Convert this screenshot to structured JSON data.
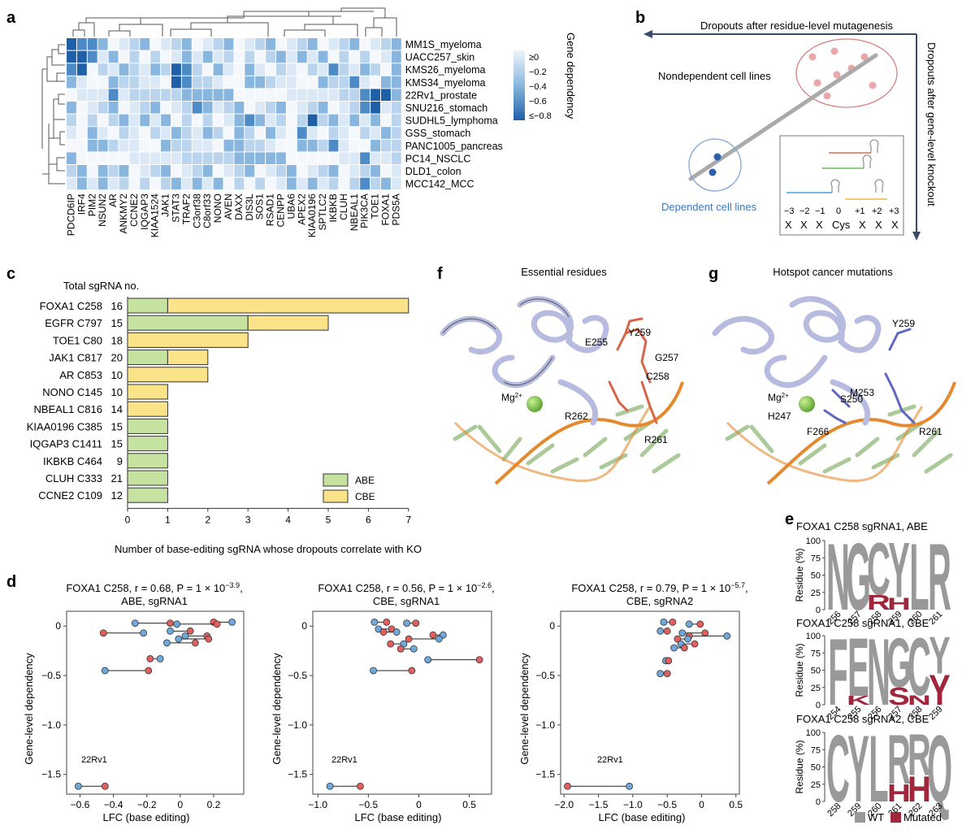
{
  "panels": {
    "a": "a",
    "b": "b",
    "c": "c",
    "d": "d",
    "e": "e",
    "f": "f",
    "g": "g"
  },
  "colors": {
    "dep_dark": "#1f5fa8",
    "dep_light": "#e8f1fa",
    "abe": "#c5e2a0",
    "cbe": "#fbe389",
    "dot_blue": "#6fa8dc",
    "dot_red": "#e06060",
    "wt": "#999999",
    "mutated": "#a0263c",
    "helix": "#c9cbe6",
    "dna": "#e5892f"
  },
  "heatmap": {
    "rows": [
      "MM1S_myeloma",
      "UACC257_skin",
      "KMS26_myeloma",
      "KMS34_myeloma",
      "22Rv1_prostate",
      "SNU216_stomach",
      "SUDHL5_lymphoma",
      "GSS_stomach",
      "PANC1005_pancreas",
      "PC14_NSCLC",
      "DLD1_colon",
      "MCC142_MCC"
    ],
    "cols": [
      "PDCD6IP",
      "IRF4",
      "PIM2",
      "NSUN2",
      "AR",
      "ANKMY2",
      "CCNE2",
      "IQGAP3",
      "KIAA1524",
      "JAK1",
      "STAT3",
      "TRAF2",
      "C3orf38",
      "C8orf33",
      "NONO",
      "AVEN",
      "DAXX",
      "DIS3L",
      "SOS1",
      "RSAD1",
      "CENPP",
      "UBA6",
      "APEX2",
      "KIAA0196",
      "SPTLC2",
      "IKBKB",
      "CLUH",
      "NBEAL1",
      "PIK3CA",
      "TOE1",
      "FOXA1",
      "PDS5A"
    ],
    "legend_title": "Gene dependency",
    "legend_ticks": [
      "≥0",
      "−0.2",
      "−0.4",
      "−0.6",
      "≤−0.8"
    ]
  },
  "schematic": {
    "top_label": "Dropouts after residue-level mutagenesis",
    "right_label": "Dropouts after gene-level knockout",
    "nondependent": "Nondependent cell lines",
    "dependent": "Dependent cell lines",
    "positions": [
      "−3",
      "−2",
      "−1",
      "0",
      "+1",
      "+2",
      "+3"
    ],
    "residues": [
      "X",
      "X",
      "X",
      "Cys",
      "X",
      "X",
      "X"
    ]
  },
  "chart_data": [
    {
      "type": "bar",
      "panel": "c",
      "title": "Total sgRNA no.",
      "xlabel": "Number of base-editing sgRNA whose dropouts correlate with KO",
      "xlim": [
        0,
        7
      ],
      "xticks": [
        "0",
        "1",
        "2",
        "3",
        "4",
        "5",
        "6",
        "7"
      ],
      "categories": [
        "FOXA1 C258",
        "EGFR C797",
        "TOE1 C80",
        "JAK1 C817",
        "AR C853",
        "NONO C145",
        "NBEAL1 C816",
        "KIAA0196 C385",
        "IQGAP3 C1411",
        "IKBKB C464",
        "CLUH C333",
        "CCNE2 C109"
      ],
      "totals": [
        "16",
        "15",
        "18",
        "20",
        "10",
        "10",
        "14",
        "15",
        "15",
        "9",
        "21",
        "12"
      ],
      "series": [
        {
          "name": "ABE",
          "values": [
            1,
            3,
            0,
            1,
            0,
            0,
            0,
            1,
            1,
            1,
            1,
            1
          ]
        },
        {
          "name": "CBE",
          "values": [
            6,
            2,
            3,
            1,
            2,
            1,
            1,
            0,
            0,
            0,
            0,
            0
          ]
        }
      ]
    },
    {
      "type": "scatter",
      "panel": "d1",
      "title_line1": "FOXA1 C258, r = 0.68, P = 1 × 10",
      "title_exp": "−3.9",
      "title_line2": "ABE, sgRNA1",
      "xlabel": "LFC (base editing)",
      "ylabel": "Gene-level dependency",
      "xlim": [
        -0.68,
        0.38
      ],
      "ylim": [
        -1.7,
        0.15
      ],
      "xticks": [
        -0.6,
        -0.4,
        -0.2,
        0,
        0.2
      ],
      "xtick_labels": [
        "−0.6",
        "−0.4",
        "−0.2",
        "0",
        "0.2"
      ],
      "yticks": [
        0,
        -0.5,
        -1.0,
        -1.5
      ],
      "ytick_labels": [
        "0",
        "−0.5",
        "−1.0",
        "−1.5"
      ],
      "annotation": "22Rv1",
      "pairs": [
        {
          "y": 0.03,
          "blue": -0.27,
          "red": -0.06
        },
        {
          "y": 0.04,
          "blue": 0.31,
          "red": 0.2
        },
        {
          "y": 0.02,
          "blue": -0.02,
          "red": 0.22
        },
        {
          "y": -0.05,
          "blue": -0.06,
          "red": 0.06
        },
        {
          "y": -0.07,
          "blue": -0.22,
          "red": -0.46
        },
        {
          "y": -0.1,
          "blue": 0.03,
          "red": 0.16
        },
        {
          "y": -0.13,
          "blue": -0.01,
          "red": 0.17
        },
        {
          "y": -0.17,
          "blue": -0.08,
          "red": 0.09
        },
        {
          "y": -0.33,
          "blue": -0.12,
          "red": -0.18
        },
        {
          "y": -0.45,
          "blue": -0.45,
          "red": -0.19
        },
        {
          "y": -1.62,
          "blue": -0.61,
          "red": -0.45
        }
      ]
    },
    {
      "type": "scatter",
      "panel": "d2",
      "title_line1": "FOXA1 C258, r = 0.56, P = 1 × 10",
      "title_exp": "−2.6",
      "title_line2": "CBE, sgRNA1",
      "xlabel": "LFC (base editing)",
      "ylabel": "Gene-level dependency",
      "xlim": [
        -1.05,
        0.72
      ],
      "ylim": [
        -1.7,
        0.15
      ],
      "xticks": [
        -1.0,
        -0.5,
        0,
        0.5
      ],
      "xtick_labels": [
        "−1.0",
        "−0.5",
        "0",
        "0.5"
      ],
      "yticks": [
        0,
        -0.5,
        -1.0,
        -1.5
      ],
      "ytick_labels": [
        "0",
        "−0.5",
        "−1.0",
        "−1.5"
      ],
      "annotation": "22Rv1",
      "pairs": [
        {
          "y": 0.04,
          "blue": -0.44,
          "red": -0.32
        },
        {
          "y": 0.03,
          "blue": -0.12,
          "red": -0.03
        },
        {
          "y": -0.03,
          "blue": -0.4,
          "red": -0.27
        },
        {
          "y": -0.06,
          "blue": -0.22,
          "red": -0.35
        },
        {
          "y": -0.09,
          "blue": 0.24,
          "red": 0.14
        },
        {
          "y": -0.13,
          "blue": 0.2,
          "red": -0.1
        },
        {
          "y": -0.18,
          "blue": -0.15,
          "red": -0.28
        },
        {
          "y": -0.23,
          "blue": -0.05,
          "red": -0.18
        },
        {
          "y": -0.34,
          "blue": 0.09,
          "red": 0.6
        },
        {
          "y": -0.45,
          "blue": -0.45,
          "red": -0.07
        },
        {
          "y": -1.62,
          "blue": -0.88,
          "red": -0.58
        }
      ]
    },
    {
      "type": "scatter",
      "panel": "d3",
      "title_line1": "FOXA1 C258, r = 0.79, P = 1 × 10",
      "title_exp": "−5.7",
      "title_line2": "CBE, sgRNA2",
      "xlabel": "LFC (base editing)",
      "ylabel": "Gene-level dependency",
      "xlim": [
        -2.05,
        0.55
      ],
      "ylim": [
        -1.7,
        0.15
      ],
      "xticks": [
        -2.0,
        -1.5,
        -1.0,
        -0.5,
        0,
        0.5
      ],
      "xtick_labels": [
        "−2.0",
        "−1.5",
        "−1.0",
        "−0.5",
        "0",
        "0.5"
      ],
      "yticks": [
        0,
        -0.5,
        -1.0,
        -1.5
      ],
      "ytick_labels": [
        "0",
        "−0.5",
        "−1.0",
        "−1.5"
      ],
      "annotation": "22Rv1",
      "pairs": [
        {
          "y": 0.04,
          "blue": -0.55,
          "red": -0.42
        },
        {
          "y": 0.02,
          "blue": -0.18,
          "red": -0.02
        },
        {
          "y": -0.05,
          "blue": -0.6,
          "red": -0.5
        },
        {
          "y": -0.07,
          "blue": -0.28,
          "red": 0.05
        },
        {
          "y": -0.1,
          "blue": 0.37,
          "red": -0.18
        },
        {
          "y": -0.13,
          "blue": -0.2,
          "red": -0.35
        },
        {
          "y": -0.18,
          "blue": -0.3,
          "red": -0.1
        },
        {
          "y": -0.22,
          "blue": -0.4,
          "red": -0.25
        },
        {
          "y": -0.35,
          "blue": -0.52,
          "red": -0.48
        },
        {
          "y": -0.48,
          "blue": -0.6,
          "red": -0.5
        },
        {
          "y": -1.62,
          "blue": -1.05,
          "red": -1.95
        }
      ]
    }
  ],
  "structures": {
    "f": {
      "title": "Essential residues",
      "mg": "Mg",
      "mg_sup": "2+",
      "labels": [
        "E255",
        "Y259",
        "G257",
        "C258",
        "R262",
        "R261"
      ]
    },
    "g": {
      "title": "Hotspot cancer mutations",
      "mg": "Mg",
      "mg_sup": "2+",
      "labels": [
        "Y259",
        "M253",
        "S250",
        "H247",
        "F266",
        "R261"
      ]
    }
  },
  "logos": {
    "ylabel": "Residue (%)",
    "yticks": [
      "100",
      "75",
      "50",
      "25",
      "0"
    ],
    "items": [
      {
        "title": "FOXA1 C258 sgRNA1, ABE",
        "positions": [
          "256",
          "257",
          "258",
          "259",
          "260",
          "261"
        ],
        "wt": [
          "N",
          "G",
          "C",
          "Y",
          "L",
          "R"
        ],
        "mutated": [
          "",
          "",
          "R",
          "H",
          "",
          ""
        ]
      },
      {
        "title": "FOXA1 C258 sgRNA1, CBE",
        "positions": [
          "254",
          "255",
          "256",
          "257",
          "258",
          "259"
        ],
        "wt": [
          "F",
          "E",
          "N",
          "G",
          "C",
          "Y"
        ],
        "mutated": [
          "",
          "K",
          "",
          "S",
          "N",
          "Y"
        ]
      },
      {
        "title": "FOXA1 C258 sgRNA2, CBE",
        "positions": [
          "258",
          "259",
          "260",
          "261",
          "262",
          "263"
        ],
        "wt": [
          "C",
          "Y",
          "L",
          "R",
          "R",
          "Q"
        ],
        "mutated": [
          "",
          "",
          "",
          "H",
          "H",
          ""
        ]
      }
    ],
    "legend": {
      "wt": "WT",
      "mutated": "Mutated"
    }
  }
}
